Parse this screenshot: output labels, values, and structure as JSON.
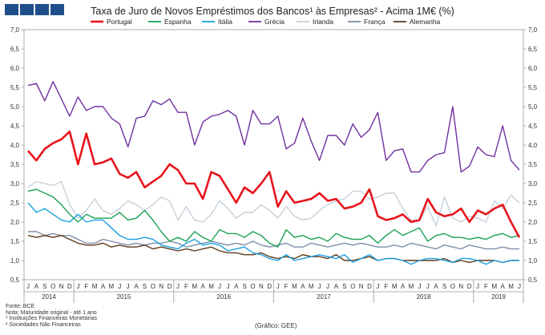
{
  "header": {
    "title": "Taxa de Juro de Novos Empréstimos dos Bancos¹ às Empresas² - Acima 1M€ (%)"
  },
  "footer": {
    "source": "Fonte: BCE",
    "note": "Nota: Maturidade original - até 1 ano",
    "foot1": "¹ Instituições Financeiras Monetárias",
    "foot2": "² Sociedades Não Financeiras",
    "credit": "(Gráfico: GEE)"
  },
  "chart_data": {
    "type": "line",
    "title": "Taxa de Juro de Novos Empréstimos dos Bancos¹ às Empresas² - Acima 1M€ (%)",
    "xlabel": "",
    "ylabel": "",
    "ylim": [
      0.5,
      7.0
    ],
    "yticks": [
      "0,5",
      "1,0",
      "1,5",
      "2,0",
      "2,5",
      "3,0",
      "3,5",
      "4,0",
      "4,5",
      "5,0",
      "5,5",
      "6,0",
      "6,5",
      "7,0"
    ],
    "month_labels": [
      "J",
      "A",
      "S",
      "O",
      "N",
      "D",
      "J",
      "F",
      "M",
      "A",
      "M",
      "J",
      "J",
      "A",
      "S",
      "O",
      "N",
      "D",
      "J",
      "F",
      "M",
      "A",
      "M",
      "J",
      "J",
      "A",
      "S",
      "O",
      "N",
      "D",
      "J",
      "F",
      "M",
      "A",
      "M",
      "J",
      "J",
      "A",
      "S",
      "O",
      "N",
      "D",
      "J",
      "F",
      "M",
      "A",
      "M",
      "J",
      "J",
      "A",
      "S",
      "O",
      "N",
      "D",
      "J",
      "F",
      "M",
      "A",
      "M",
      "J"
    ],
    "years": [
      {
        "label": "2014",
        "start": 0,
        "end": 5
      },
      {
        "label": "2015",
        "start": 6,
        "end": 17
      },
      {
        "label": "2016",
        "start": 18,
        "end": 29
      },
      {
        "label": "2017",
        "start": 30,
        "end": 41
      },
      {
        "label": "2018",
        "start": 42,
        "end": 53
      },
      {
        "label": "2019",
        "start": 54,
        "end": 59
      }
    ],
    "legend_position": "top",
    "series": [
      {
        "name": "Portugal",
        "color": "#e8141b",
        "values": [
          3.85,
          3.6,
          3.9,
          4.05,
          4.15,
          4.35,
          3.5,
          4.3,
          3.5,
          3.55,
          3.65,
          3.25,
          3.15,
          3.3,
          2.9,
          3.05,
          3.2,
          3.5,
          3.35,
          3.0,
          3.0,
          2.6,
          3.3,
          3.2,
          2.85,
          2.5,
          2.9,
          2.75,
          3.0,
          3.3,
          2.4,
          2.8,
          2.5,
          2.55,
          2.6,
          2.75,
          2.55,
          2.6,
          2.35,
          2.4,
          2.5,
          2.85,
          2.15,
          2.05,
          2.1,
          2.2,
          2.0,
          2.05,
          2.6,
          2.25,
          2.15,
          2.2,
          2.35,
          2.0,
          2.3,
          2.2,
          2.35,
          2.45,
          2.0,
          1.6
        ]
      },
      {
        "name": "Espanha",
        "color": "#1aa153",
        "values": [
          2.8,
          2.85,
          2.75,
          2.65,
          2.45,
          2.2,
          2.0,
          2.2,
          2.1,
          2.1,
          2.1,
          2.25,
          2.05,
          2.1,
          2.3,
          2.05,
          1.75,
          1.5,
          1.6,
          1.5,
          1.75,
          1.6,
          1.5,
          1.8,
          1.7,
          1.7,
          1.6,
          1.75,
          1.65,
          1.45,
          1.35,
          1.8,
          1.6,
          1.65,
          1.55,
          1.6,
          1.5,
          1.7,
          1.6,
          1.55,
          1.55,
          1.65,
          1.45,
          1.65,
          1.8,
          1.65,
          1.75,
          1.85,
          1.5,
          1.65,
          1.7,
          1.6,
          1.6,
          1.55,
          1.6,
          1.55,
          1.65,
          1.7,
          1.6,
          1.65
        ]
      },
      {
        "name": "Itália",
        "color": "#1aa0e0",
        "values": [
          2.5,
          2.25,
          2.35,
          2.2,
          2.05,
          2.0,
          2.2,
          2.0,
          2.05,
          2.05,
          1.85,
          1.65,
          1.55,
          1.55,
          1.6,
          1.55,
          1.4,
          1.35,
          1.3,
          1.45,
          1.55,
          1.4,
          1.45,
          1.4,
          1.25,
          1.3,
          1.35,
          1.2,
          1.15,
          1.05,
          1.0,
          1.15,
          1.0,
          1.05,
          1.1,
          1.15,
          1.1,
          1.05,
          1.15,
          0.95,
          1.05,
          1.15,
          1.0,
          1.05,
          1.05,
          1.0,
          0.9,
          1.0,
          1.05,
          1.05,
          1.0,
          0.95,
          1.05,
          1.05,
          1.0,
          0.9,
          1.0,
          0.95,
          1.0,
          1.0
        ]
      },
      {
        "name": "Grécia",
        "color": "#7030a0",
        "values": [
          5.55,
          5.6,
          5.15,
          5.65,
          5.2,
          4.75,
          5.25,
          4.9,
          5.0,
          5.0,
          4.7,
          4.55,
          3.95,
          4.7,
          4.75,
          5.15,
          5.05,
          5.2,
          4.85,
          4.85,
          4.0,
          4.6,
          4.75,
          4.8,
          4.9,
          4.75,
          4.0,
          4.9,
          4.55,
          4.55,
          4.75,
          3.9,
          4.05,
          4.7,
          4.1,
          3.6,
          4.25,
          4.25,
          4.0,
          4.55,
          4.2,
          4.4,
          4.85,
          3.6,
          3.85,
          3.9,
          3.3,
          3.3,
          3.6,
          3.75,
          3.8,
          5.0,
          3.3,
          3.45,
          3.95,
          3.75,
          3.7,
          4.5,
          3.6,
          3.35
        ]
      },
      {
        "name": "Irlanda",
        "color": "#c6d0da",
        "values": [
          2.9,
          3.05,
          3.0,
          2.95,
          3.05,
          2.45,
          2.1,
          2.3,
          2.6,
          2.3,
          2.2,
          2.35,
          2.55,
          2.45,
          2.3,
          2.45,
          2.65,
          2.55,
          2.05,
          2.4,
          2.05,
          2.0,
          2.2,
          2.55,
          2.35,
          2.1,
          2.25,
          2.25,
          2.45,
          2.3,
          2.1,
          2.4,
          2.15,
          2.05,
          2.1,
          2.3,
          2.45,
          2.55,
          2.6,
          2.8,
          2.8,
          2.6,
          2.65,
          2.75,
          2.75,
          2.35,
          2.05,
          2.05,
          2.4,
          1.9,
          2.65,
          2.1,
          2.0,
          2.15,
          2.1,
          2.0,
          2.55,
          2.35,
          2.7,
          2.5
        ]
      },
      {
        "name": "França",
        "color": "#7f8fa8",
        "values": [
          1.75,
          1.75,
          1.65,
          1.7,
          1.65,
          1.65,
          1.55,
          1.45,
          1.45,
          1.55,
          1.5,
          1.45,
          1.4,
          1.45,
          1.4,
          1.45,
          1.45,
          1.5,
          1.45,
          1.35,
          1.4,
          1.45,
          1.5,
          1.45,
          1.4,
          1.45,
          1.4,
          1.5,
          1.4,
          1.35,
          1.4,
          1.45,
          1.35,
          1.35,
          1.45,
          1.4,
          1.35,
          1.4,
          1.45,
          1.4,
          1.45,
          1.4,
          1.35,
          1.35,
          1.4,
          1.35,
          1.45,
          1.4,
          1.35,
          1.3,
          1.4,
          1.35,
          1.3,
          1.4,
          1.35,
          1.3,
          1.3,
          1.35,
          1.3,
          1.3
        ]
      },
      {
        "name": "Alemanha",
        "color": "#5c3a1a",
        "values": [
          1.65,
          1.6,
          1.65,
          1.6,
          1.65,
          1.55,
          1.45,
          1.4,
          1.4,
          1.45,
          1.35,
          1.4,
          1.35,
          1.35,
          1.4,
          1.3,
          1.35,
          1.3,
          1.25,
          1.3,
          1.25,
          1.3,
          1.35,
          1.25,
          1.2,
          1.2,
          1.15,
          1.15,
          1.2,
          1.1,
          1.05,
          1.1,
          1.05,
          1.15,
          1.1,
          1.1,
          1.05,
          1.15,
          1.0,
          1.0,
          1.05,
          1.1,
          1.0,
          1.05,
          1.05,
          1.0,
          1.0,
          1.0,
          1.0,
          1.0,
          1.05,
          0.95,
          1.0,
          0.95,
          1.0,
          1.0,
          1.0,
          0.95,
          1.0,
          1.0
        ]
      }
    ]
  }
}
